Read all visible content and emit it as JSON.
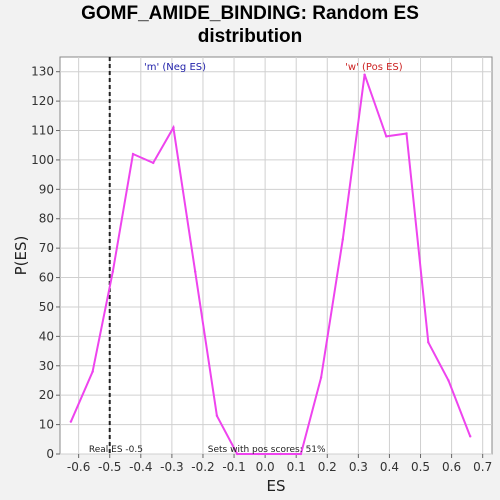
{
  "chart_data": {
    "type": "line",
    "title_line1": "GOMF_AMIDE_BINDING: Random ES",
    "title_line2": "distribution",
    "xlabel": "ES",
    "ylabel": "P(ES)",
    "xlim": [
      -0.66,
      0.73
    ],
    "ylim": [
      0,
      135
    ],
    "x_ticks": [
      -0.6,
      -0.5,
      -0.4,
      -0.3,
      -0.2,
      -0.1,
      0.0,
      0.1,
      0.2,
      0.3,
      0.4,
      0.5,
      0.6,
      0.7
    ],
    "x_tick_labels": [
      "-0.6",
      "-0.5",
      "-0.4",
      "-0.3",
      "-0.2",
      "-0.1",
      "0.0",
      "0.1",
      "0.2",
      "0.3",
      "0.4",
      "0.5",
      "0.6",
      "0.7"
    ],
    "y_ticks": [
      0,
      10,
      20,
      30,
      40,
      50,
      60,
      70,
      80,
      90,
      100,
      110,
      120,
      130
    ],
    "grid": true,
    "series": [
      {
        "color": "#ee44ee",
        "x": [
          -0.625,
          -0.555,
          -0.49,
          -0.425,
          -0.36,
          -0.295,
          -0.225,
          -0.155,
          -0.09,
          -0.02,
          0.05,
          0.115,
          0.18,
          0.25,
          0.32,
          0.39,
          0.455,
          0.525,
          0.59,
          0.66
        ],
        "y": [
          11,
          28,
          62,
          102,
          99,
          111,
          62,
          13,
          0,
          0,
          0,
          0,
          26,
          73,
          129,
          108,
          109,
          38,
          25,
          6
        ]
      }
    ],
    "real_es": -0.5,
    "annotations": {
      "neg_label": "'m' (Neg ES)",
      "pos_label": "'w' (Pos ES)",
      "real_es_label": "Real ES -0.5",
      "pos_sets_label": "Sets with pos scores: 51%"
    },
    "colors": {
      "neg_label": "#2222aa",
      "pos_label": "#cc2222",
      "line": "#ee44ee",
      "grid": "#d0d0d0"
    }
  }
}
